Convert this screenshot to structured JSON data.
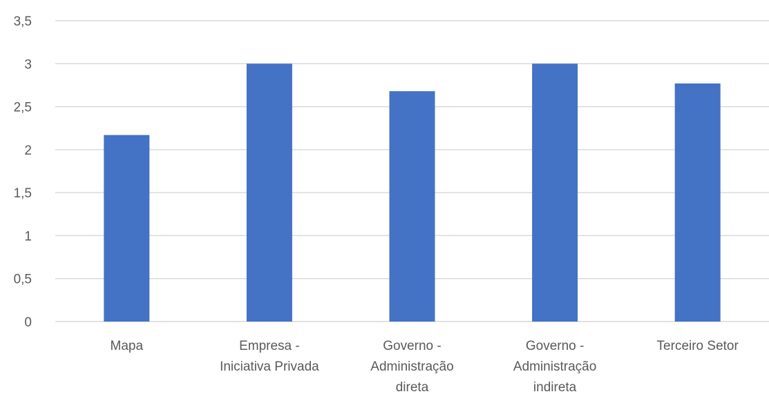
{
  "chart_data": {
    "type": "bar",
    "categories": [
      "Mapa",
      "Empresa - Iniciativa Privada",
      "Governo - Administração direta",
      "Governo - Administração indireta",
      "Terceiro Setor"
    ],
    "category_label_lines": [
      [
        "Mapa"
      ],
      [
        "Empresa -",
        "Iniciativa Privada"
      ],
      [
        "Governo -",
        "Administração",
        "direta"
      ],
      [
        "Governo -",
        "Administração",
        "indireta"
      ],
      [
        "Terceiro Setor"
      ]
    ],
    "values": [
      2.17,
      3.0,
      2.68,
      3.0,
      2.77
    ],
    "y_ticks": [
      "0",
      "0,5",
      "1",
      "1,5",
      "2",
      "2,5",
      "3",
      "3,5"
    ],
    "y_tick_values": [
      0,
      0.5,
      1,
      1.5,
      2,
      2.5,
      3,
      3.5
    ],
    "ylim": [
      0,
      3.5
    ],
    "title": "",
    "xlabel": "",
    "ylabel": "",
    "grid": true,
    "bar_color": "#4472c4"
  }
}
